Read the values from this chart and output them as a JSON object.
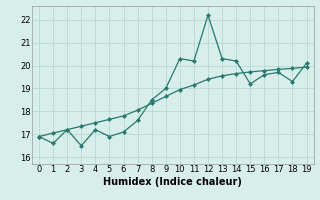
{
  "x": [
    0,
    1,
    2,
    3,
    4,
    5,
    6,
    7,
    8,
    9,
    10,
    11,
    12,
    13,
    14,
    15,
    16,
    17,
    18,
    19
  ],
  "y_jagged": [
    16.9,
    16.6,
    17.2,
    16.5,
    17.2,
    16.9,
    17.1,
    17.6,
    18.5,
    19.0,
    20.3,
    20.2,
    22.2,
    20.3,
    20.2,
    19.2,
    19.6,
    19.7,
    19.3,
    20.1
  ],
  "y_smooth": [
    16.9,
    17.05,
    17.2,
    17.35,
    17.5,
    17.65,
    17.8,
    18.05,
    18.35,
    18.65,
    18.95,
    19.15,
    19.4,
    19.55,
    19.65,
    19.72,
    19.78,
    19.83,
    19.88,
    19.93
  ],
  "line_color": "#267a6e",
  "bg_color": "#d8eeea",
  "grid_color": "#b8d8d4",
  "xlabel": "Humidex (Indice chaleur)",
  "ylabel_ticks": [
    16,
    17,
    18,
    19,
    20,
    21,
    22
  ],
  "xlim": [
    -0.5,
    19.5
  ],
  "ylim": [
    15.7,
    22.6
  ],
  "xticks": [
    0,
    1,
    2,
    3,
    4,
    5,
    6,
    7,
    8,
    9,
    10,
    11,
    12,
    13,
    14,
    15,
    16,
    17,
    18,
    19
  ],
  "marker": "D",
  "markersize": 2.0,
  "linewidth": 0.9,
  "tick_fontsize": 6.0,
  "xlabel_fontsize": 7.0
}
